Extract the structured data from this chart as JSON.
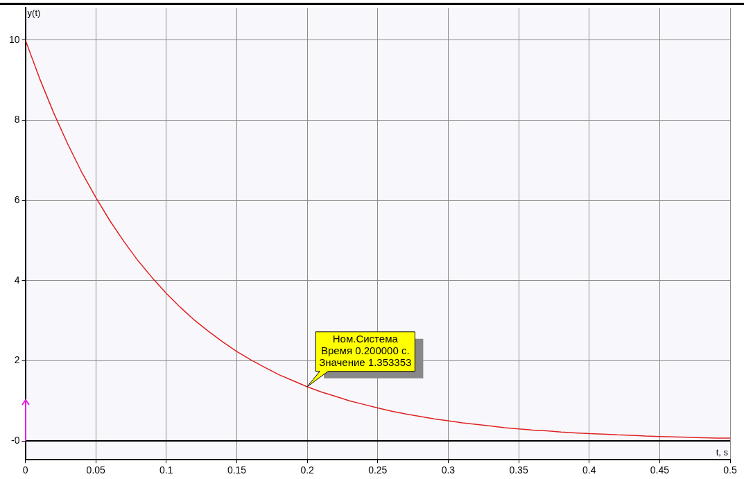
{
  "chart_data": {
    "type": "line",
    "xlabel": "t, s",
    "ylabel": "y(t)",
    "x": [
      0,
      0.01,
      0.02,
      0.03,
      0.04,
      0.05,
      0.06,
      0.07,
      0.08,
      0.09,
      0.1,
      0.11,
      0.12,
      0.13,
      0.14,
      0.15,
      0.16,
      0.17,
      0.18,
      0.19,
      0.2,
      0.21,
      0.22,
      0.23,
      0.24,
      0.25,
      0.26,
      0.27,
      0.28,
      0.29,
      0.3,
      0.31,
      0.32,
      0.33,
      0.34,
      0.35,
      0.36,
      0.37,
      0.38,
      0.39,
      0.4,
      0.41,
      0.42,
      0.43,
      0.44,
      0.45,
      0.46,
      0.47,
      0.48,
      0.49,
      0.5
    ],
    "series": [
      {
        "color": "#e02020",
        "values": [
          10,
          9.05,
          8.19,
          7.41,
          6.7,
          6.07,
          5.49,
          4.97,
          4.49,
          4.07,
          3.68,
          3.33,
          3.01,
          2.73,
          2.47,
          2.23,
          2.02,
          1.83,
          1.65,
          1.5,
          1.35,
          1.22,
          1.11,
          1,
          0.91,
          0.82,
          0.74,
          0.67,
          0.61,
          0.55,
          0.5,
          0.45,
          0.41,
          0.37,
          0.33,
          0.3,
          0.27,
          0.25,
          0.22,
          0.2,
          0.18,
          0.17,
          0.15,
          0.14,
          0.12,
          0.11,
          0.1,
          0.09,
          0.08,
          0.07,
          0.07
        ]
      }
    ],
    "xlim": [
      0,
      0.5
    ],
    "xticks": [
      0,
      0.05,
      0.1,
      0.15,
      0.2,
      0.25,
      0.3,
      0.35,
      0.4,
      0.45,
      0.5
    ],
    "ylim": [
      -0.47,
      10.8
    ],
    "yticks": [
      {
        "value": 0,
        "label": "-0"
      },
      2,
      4,
      6,
      8,
      10
    ],
    "ref_lines": [
      {
        "axis": "y",
        "value": 0,
        "color": "#000000"
      }
    ],
    "annotations": [
      {
        "text": "Ном.Система\nВремя 0.200000 с.\nЗначение 1.353353",
        "x": 0.2,
        "y": 1.353353
      }
    ],
    "grid": true,
    "legend": false,
    "marker": "none",
    "line_style": "solid"
  }
}
